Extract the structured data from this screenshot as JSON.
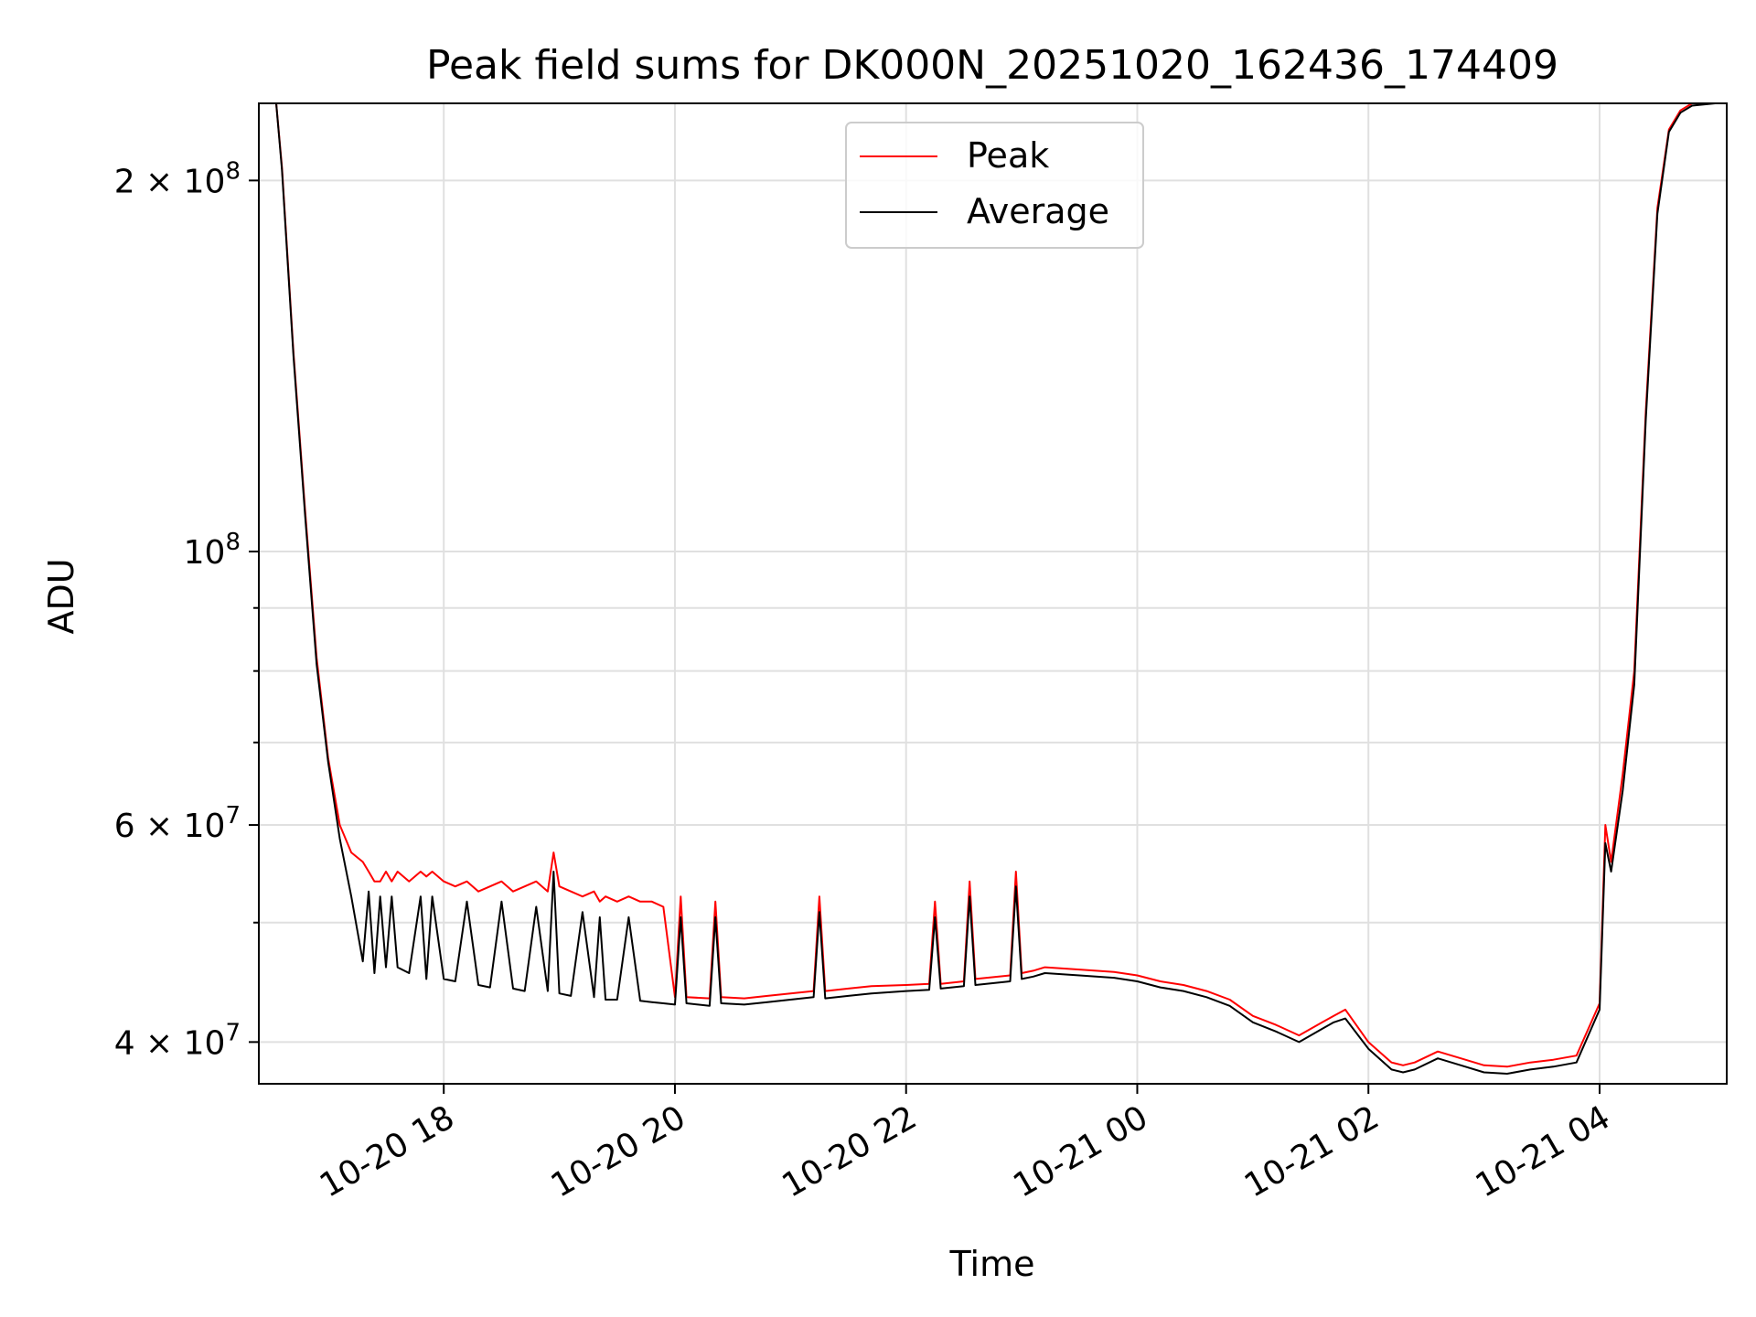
{
  "chart_data": {
    "type": "line",
    "title": "Peak field sums for DK000N_20251020_162436_174409",
    "xlabel": "Time",
    "ylabel": "ADU",
    "yscale": "log",
    "grid": true,
    "legend_position": "upper-center",
    "xlim_hours": [
      16.4,
      29.1
    ],
    "ylim": [
      37000000,
      231000000
    ],
    "x_ticks": [
      {
        "hour": 18,
        "label": "10-20 18"
      },
      {
        "hour": 20,
        "label": "10-20 20"
      },
      {
        "hour": 22,
        "label": "10-20 22"
      },
      {
        "hour": 24,
        "label": "10-21 00"
      },
      {
        "hour": 26,
        "label": "10-21 02"
      },
      {
        "hour": 28,
        "label": "10-21 04"
      }
    ],
    "y_ticks": [
      {
        "value": 40000000,
        "base": "4 × 10",
        "exp": "7"
      },
      {
        "value": 60000000,
        "base": "6 × 10",
        "exp": "7"
      },
      {
        "value": 100000000,
        "base": "10",
        "exp": "8"
      },
      {
        "value": 200000000,
        "base": "2 × 10",
        "exp": "8"
      }
    ],
    "y_minor_ticks": [
      50000000,
      70000000,
      80000000,
      90000000
    ],
    "legend": [
      {
        "name": "Peak",
        "color": "#ff0000"
      },
      {
        "name": "Average",
        "color": "#000000"
      }
    ],
    "series": [
      {
        "name": "Peak",
        "color": "#ff0000",
        "x_hours": [
          16.45,
          16.55,
          16.6,
          16.7,
          16.8,
          16.9,
          17.0,
          17.1,
          17.2,
          17.3,
          17.35,
          17.4,
          17.45,
          17.5,
          17.55,
          17.6,
          17.7,
          17.8,
          17.85,
          17.9,
          18.0,
          18.1,
          18.2,
          18.3,
          18.4,
          18.5,
          18.6,
          18.7,
          18.8,
          18.9,
          18.95,
          19.0,
          19.1,
          19.2,
          19.3,
          19.35,
          19.4,
          19.5,
          19.6,
          19.7,
          19.8,
          19.9,
          20.0,
          20.05,
          20.1,
          20.3,
          20.35,
          20.4,
          20.6,
          20.8,
          21.0,
          21.2,
          21.25,
          21.3,
          21.5,
          21.7,
          22.0,
          22.2,
          22.25,
          22.3,
          22.5,
          22.55,
          22.6,
          22.9,
          22.95,
          23.0,
          23.1,
          23.2,
          23.5,
          23.8,
          24.0,
          24.2,
          24.4,
          24.6,
          24.8,
          25.0,
          25.2,
          25.4,
          25.6,
          25.7,
          25.8,
          26.0,
          26.2,
          26.3,
          26.4,
          26.6,
          26.8,
          27.0,
          27.2,
          27.4,
          27.6,
          27.8,
          28.0,
          28.05,
          28.1,
          28.2,
          28.3,
          28.4,
          28.5,
          28.6,
          28.7,
          28.8,
          29.0,
          29.1
        ],
        "y": [
          231000000,
          231000000,
          205000000,
          145000000,
          108000000,
          82000000,
          68000000,
          60000000,
          57000000,
          56000000,
          55000000,
          54000000,
          54000000,
          55000000,
          54000000,
          55000000,
          54000000,
          55000000,
          54500000,
          55000000,
          54000000,
          53500000,
          54000000,
          53000000,
          53500000,
          54000000,
          53000000,
          53500000,
          54000000,
          53000000,
          57000000,
          53500000,
          53000000,
          52500000,
          53000000,
          52000000,
          52500000,
          52000000,
          52500000,
          52000000,
          52000000,
          51500000,
          43500000,
          52500000,
          43500000,
          43400000,
          52000000,
          43500000,
          43400000,
          43600000,
          43800000,
          44000000,
          52500000,
          44000000,
          44200000,
          44400000,
          44500000,
          44600000,
          52000000,
          44600000,
          44800000,
          54000000,
          45000000,
          45300000,
          55000000,
          45500000,
          45700000,
          46000000,
          45800000,
          45600000,
          45300000,
          44800000,
          44500000,
          44000000,
          43300000,
          42000000,
          41300000,
          40500000,
          41500000,
          42000000,
          42500000,
          40000000,
          38500000,
          38300000,
          38500000,
          39300000,
          38800000,
          38300000,
          38200000,
          38500000,
          38700000,
          39000000,
          43000000,
          60000000,
          56000000,
          66000000,
          80000000,
          130000000,
          190000000,
          220000000,
          228000000,
          231000000,
          231000000,
          231000000
        ]
      },
      {
        "name": "Average",
        "color": "#000000",
        "x_hours": [
          16.45,
          16.55,
          16.6,
          16.7,
          16.8,
          16.9,
          17.0,
          17.1,
          17.2,
          17.3,
          17.35,
          17.4,
          17.45,
          17.5,
          17.55,
          17.6,
          17.7,
          17.8,
          17.85,
          17.9,
          18.0,
          18.1,
          18.2,
          18.3,
          18.4,
          18.5,
          18.6,
          18.7,
          18.8,
          18.9,
          18.95,
          19.0,
          19.1,
          19.2,
          19.3,
          19.35,
          19.4,
          19.5,
          19.6,
          19.7,
          19.8,
          19.9,
          20.0,
          20.05,
          20.1,
          20.3,
          20.35,
          20.4,
          20.6,
          20.8,
          21.0,
          21.2,
          21.25,
          21.3,
          21.5,
          21.7,
          22.0,
          22.2,
          22.25,
          22.3,
          22.5,
          22.55,
          22.6,
          22.9,
          22.95,
          23.0,
          23.1,
          23.2,
          23.5,
          23.8,
          24.0,
          24.2,
          24.4,
          24.6,
          24.8,
          25.0,
          25.2,
          25.4,
          25.6,
          25.7,
          25.8,
          26.0,
          26.2,
          26.3,
          26.4,
          26.6,
          26.8,
          27.0,
          27.2,
          27.4,
          27.6,
          27.8,
          28.0,
          28.05,
          28.1,
          28.2,
          28.3,
          28.4,
          28.5,
          28.6,
          28.7,
          28.8,
          29.0,
          29.1
        ],
        "y": [
          231000000,
          231000000,
          204000000,
          144000000,
          107000000,
          81000000,
          67500000,
          58500000,
          52500000,
          46500000,
          53000000,
          45500000,
          52500000,
          46000000,
          52500000,
          46000000,
          45500000,
          52500000,
          45000000,
          52500000,
          45000000,
          44800000,
          52000000,
          44500000,
          44300000,
          52000000,
          44200000,
          44000000,
          51500000,
          44000000,
          55000000,
          43800000,
          43600000,
          51000000,
          43500000,
          50500000,
          43300000,
          43300000,
          50500000,
          43200000,
          43100000,
          43000000,
          42900000,
          50500000,
          43000000,
          42800000,
          50500000,
          43000000,
          42900000,
          43100000,
          43300000,
          43500000,
          51000000,
          43400000,
          43600000,
          43800000,
          44000000,
          44100000,
          50500000,
          44200000,
          44400000,
          52500000,
          44500000,
          44800000,
          53500000,
          45000000,
          45200000,
          45500000,
          45300000,
          45100000,
          44800000,
          44300000,
          44000000,
          43500000,
          42800000,
          41500000,
          40800000,
          40000000,
          41000000,
          41500000,
          41800000,
          39500000,
          38000000,
          37800000,
          38000000,
          38800000,
          38300000,
          37800000,
          37700000,
          38000000,
          38200000,
          38500000,
          42500000,
          58000000,
          55000000,
          64000000,
          78000000,
          128000000,
          188000000,
          219000000,
          227000000,
          230000000,
          231000000,
          231000000
        ]
      }
    ]
  }
}
